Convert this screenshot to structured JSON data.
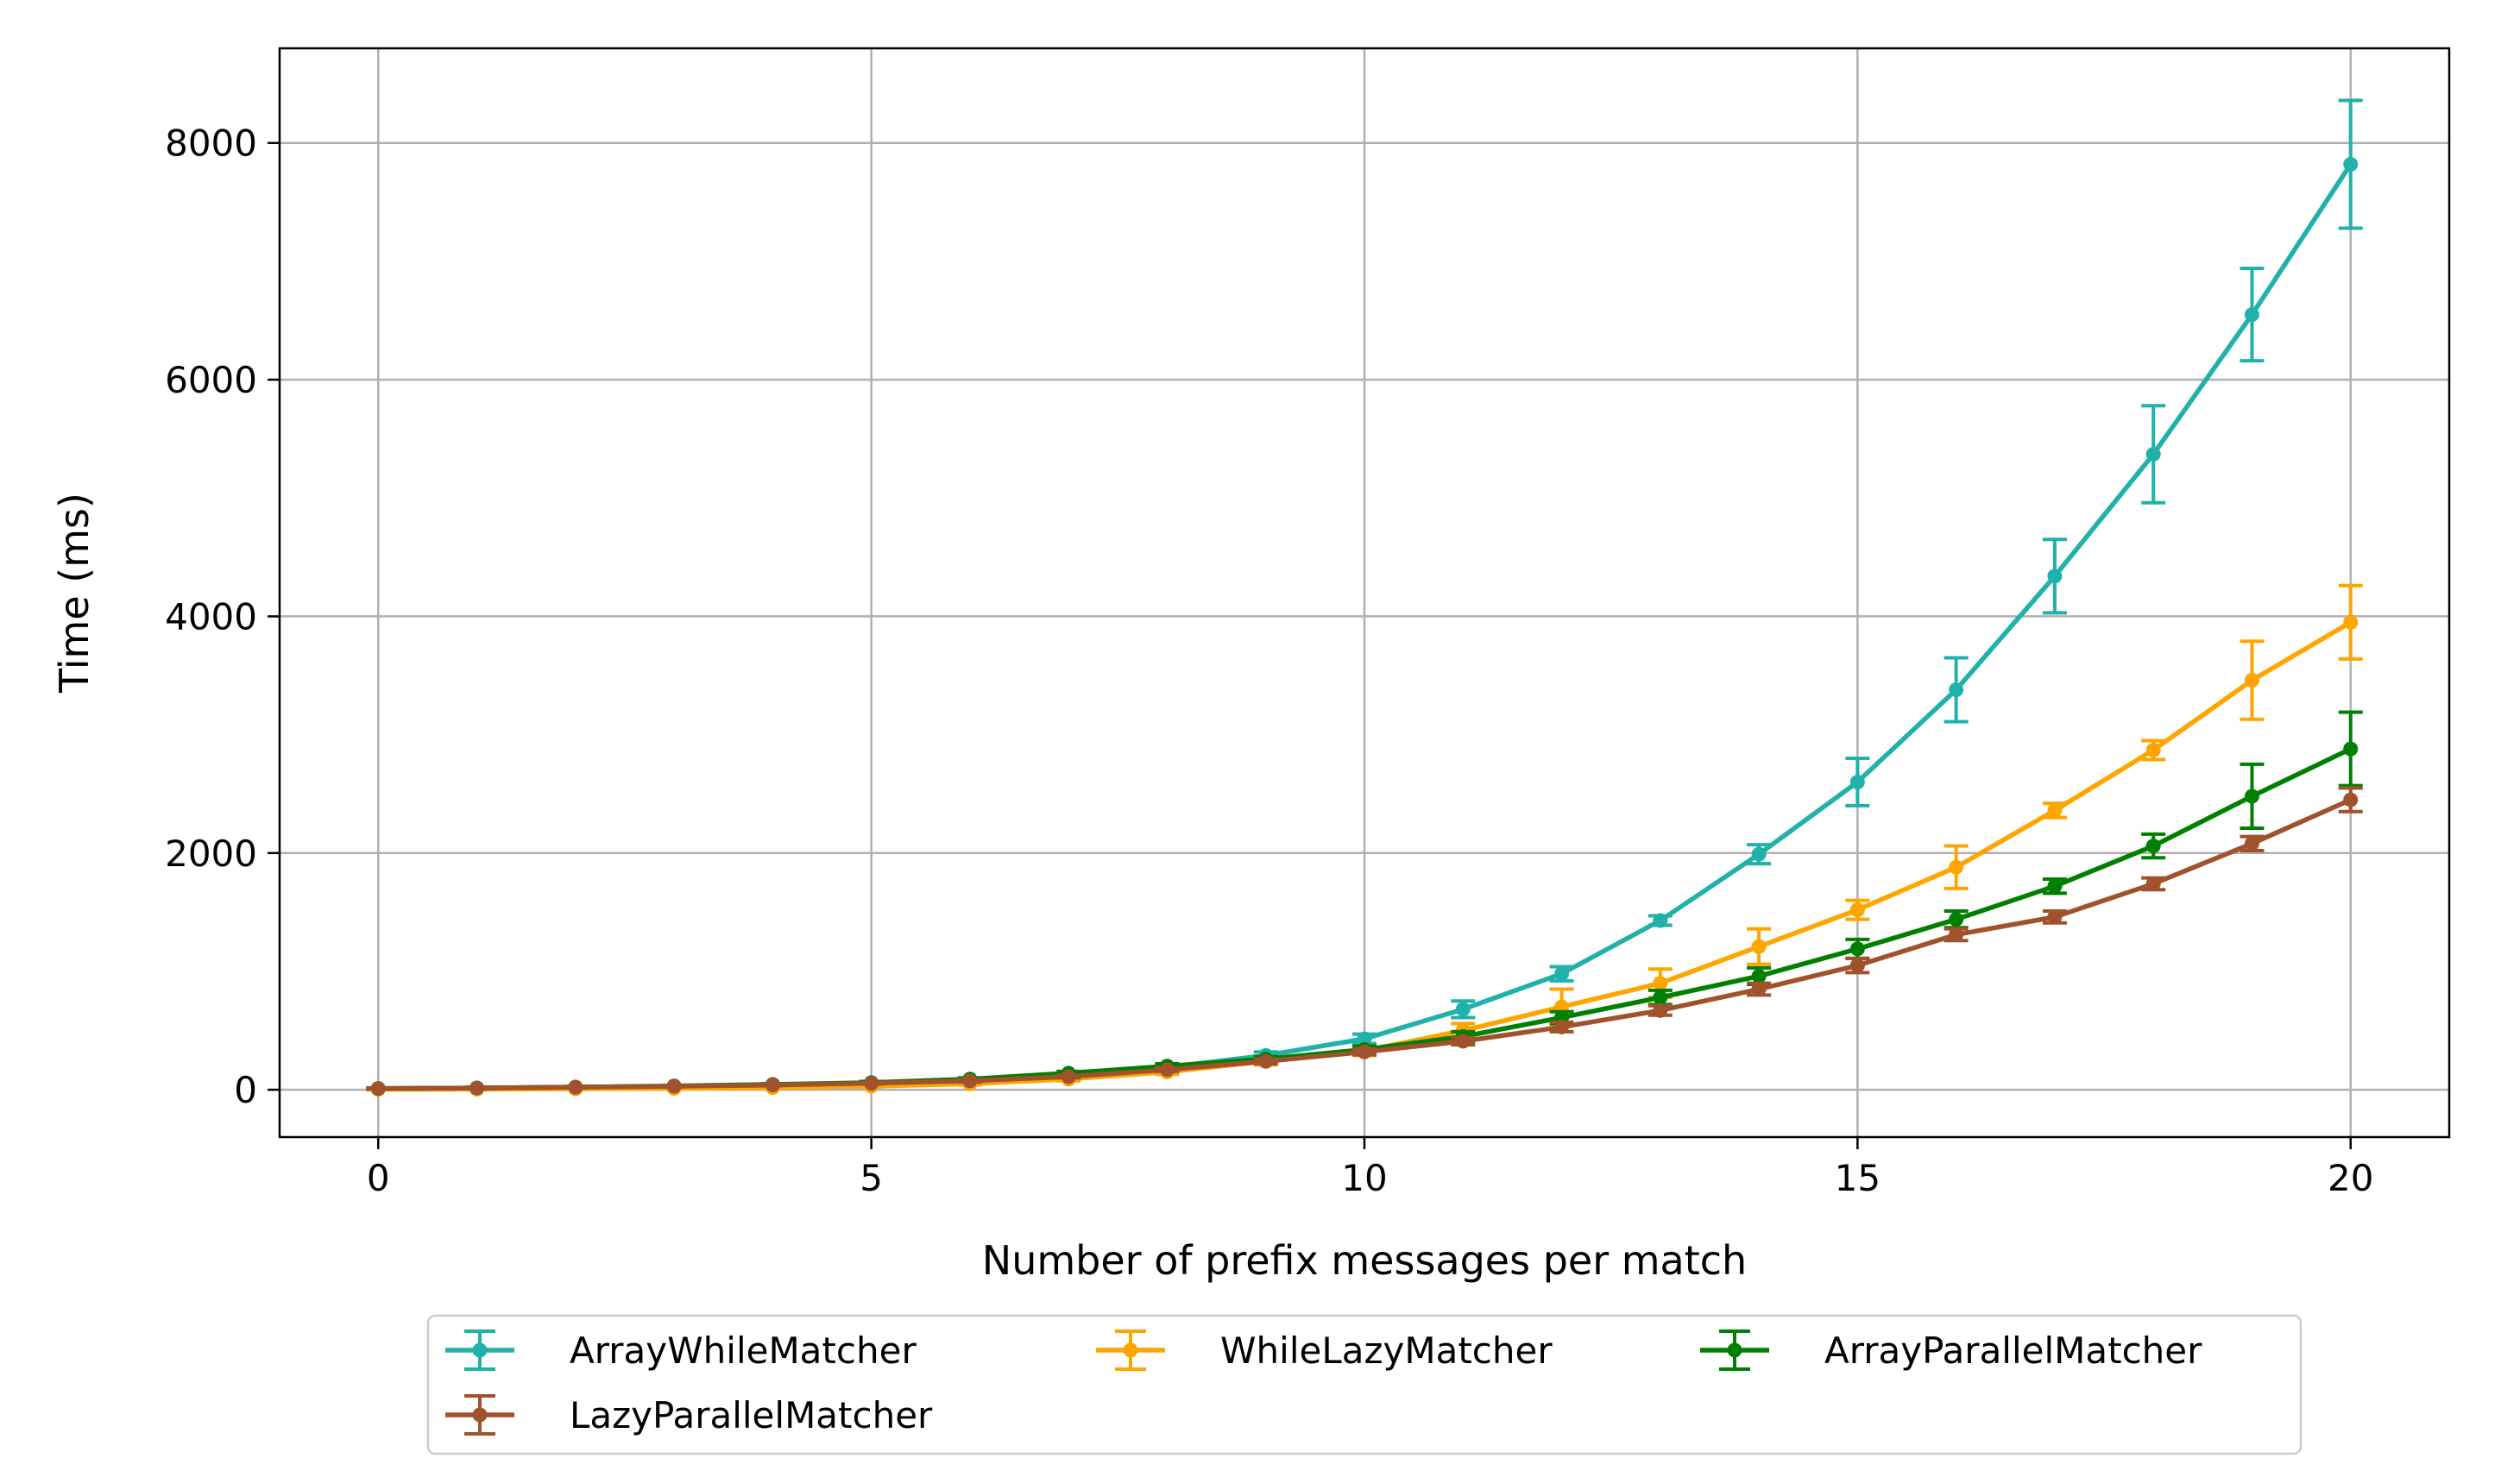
{
  "chart_data": {
    "type": "line",
    "title": "",
    "xlabel": "Number of prefix messages per match",
    "ylabel": "Time (ms)",
    "xlim": [
      -1,
      21
    ],
    "ylim": [
      -400,
      8800
    ],
    "xticks": [
      0,
      5,
      10,
      15,
      20
    ],
    "yticks": [
      0,
      2000,
      4000,
      6000,
      8000
    ],
    "xtick_labels": [
      "0",
      "5",
      "10",
      "15",
      "20"
    ],
    "ytick_labels": [
      "0",
      "2000",
      "4000",
      "6000",
      "8000"
    ],
    "grid": true,
    "legend_position": "below",
    "x": [
      0,
      1,
      2,
      3,
      4,
      5,
      6,
      7,
      8,
      9,
      10,
      11,
      12,
      13,
      14,
      15,
      16,
      17,
      18,
      19,
      20
    ],
    "series": [
      {
        "name": "ArrayWhileMatcher",
        "color": "#20b2aa",
        "values": [
          10,
          15,
          22,
          30,
          40,
          55,
          75,
          120,
          190,
          290,
          430,
          680,
          980,
          1430,
          1990,
          2600,
          3380,
          4340,
          5370,
          6550,
          7820
        ],
        "errors": [
          5,
          5,
          5,
          5,
          5,
          10,
          10,
          15,
          20,
          30,
          40,
          70,
          60,
          40,
          80,
          200,
          270,
          310,
          410,
          390,
          540
        ]
      },
      {
        "name": "WhileLazyMatcher",
        "color": "#ffa500",
        "values": [
          5,
          5,
          8,
          12,
          18,
          30,
          50,
          90,
          150,
          240,
          330,
          500,
          700,
          900,
          1210,
          1520,
          1880,
          2360,
          2870,
          3460,
          3950
        ],
        "errors": [
          5,
          5,
          5,
          5,
          5,
          5,
          10,
          15,
          20,
          30,
          40,
          60,
          150,
          120,
          150,
          80,
          180,
          60,
          80,
          330,
          310
        ]
      },
      {
        "name": "ArrayParallelMatcher",
        "color": "#008000",
        "values": [
          10,
          15,
          22,
          32,
          45,
          60,
          90,
          140,
          200,
          260,
          340,
          450,
          610,
          780,
          960,
          1190,
          1440,
          1720,
          2060,
          2480,
          2880
        ],
        "errors": [
          5,
          5,
          5,
          5,
          5,
          10,
          10,
          15,
          20,
          20,
          30,
          40,
          50,
          60,
          70,
          80,
          70,
          60,
          100,
          270,
          310
        ]
      },
      {
        "name": "LazyParallelMatcher",
        "color": "#a0522d",
        "values": [
          10,
          15,
          22,
          30,
          40,
          55,
          75,
          110,
          170,
          240,
          320,
          410,
          530,
          670,
          850,
          1050,
          1310,
          1460,
          1740,
          2080,
          2450
        ],
        "errors": [
          5,
          5,
          5,
          5,
          5,
          5,
          10,
          10,
          15,
          20,
          25,
          30,
          40,
          40,
          50,
          60,
          50,
          50,
          50,
          60,
          100
        ]
      }
    ],
    "legend": [
      {
        "series": 0,
        "label": "ArrayWhileMatcher"
      },
      {
        "series": 1,
        "label": "WhileLazyMatcher"
      },
      {
        "series": 2,
        "label": "ArrayParallelMatcher"
      },
      {
        "series": 3,
        "label": "LazyParallelMatcher"
      }
    ]
  }
}
